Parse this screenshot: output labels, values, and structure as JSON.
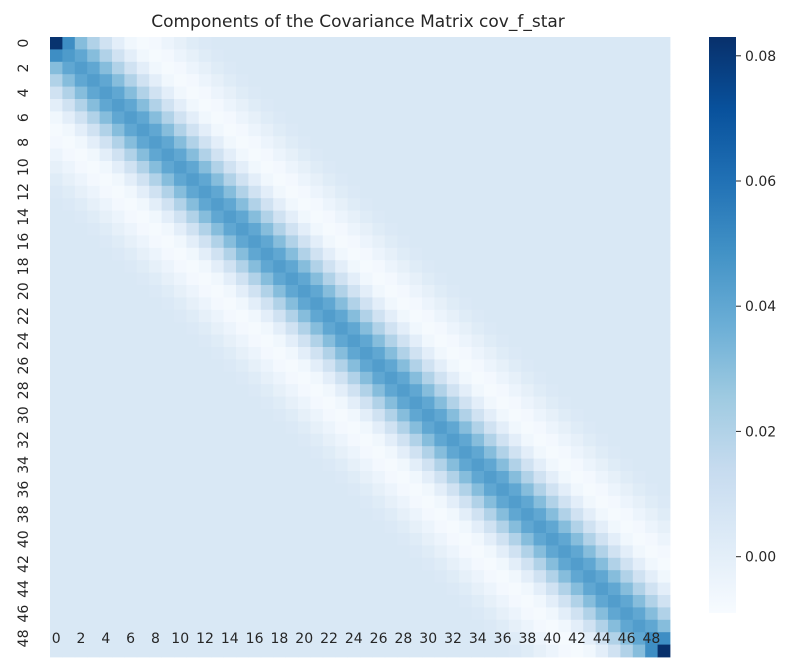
{
  "chart_data": {
    "type": "heatmap",
    "title": "Components of the Covariance Matrix cov_f_star",
    "n": 50,
    "x_tick_labels": [
      "0",
      "2",
      "4",
      "6",
      "8",
      "10",
      "12",
      "14",
      "16",
      "18",
      "20",
      "22",
      "24",
      "26",
      "28",
      "30",
      "32",
      "34",
      "36",
      "38",
      "40",
      "42",
      "44",
      "46",
      "48"
    ],
    "y_tick_labels": [
      "0",
      "2",
      "4",
      "6",
      "8",
      "10",
      "12",
      "14",
      "16",
      "18",
      "20",
      "22",
      "24",
      "26",
      "28",
      "30",
      "32",
      "34",
      "36",
      "38",
      "40",
      "42",
      "44",
      "46",
      "48"
    ],
    "colorbar": {
      "vmin": -0.009,
      "vmax": 0.083,
      "ticks": [
        0.08,
        0.06,
        0.04,
        0.02,
        0.0
      ],
      "tick_labels": [
        "0.08",
        "0.06",
        "0.04",
        "0.02",
        "0.00"
      ]
    },
    "colormap": "Blues",
    "values_model": {
      "diagonal": 0.044,
      "corners": {
        "0,0": 0.082,
        "49,49": 0.083,
        "0,1": 0.05,
        "1,1": 0.045,
        "48,48": 0.05,
        "48,49": 0.05
      },
      "offdiag_by_distance": [
        0.044,
        0.04,
        0.031,
        0.02,
        0.009,
        0.0,
        -0.006,
        -0.008,
        -0.007,
        -0.004,
        -0.001,
        0.002,
        0.004,
        0.005,
        0.005,
        0.005
      ],
      "far_value": 0.005
    }
  }
}
